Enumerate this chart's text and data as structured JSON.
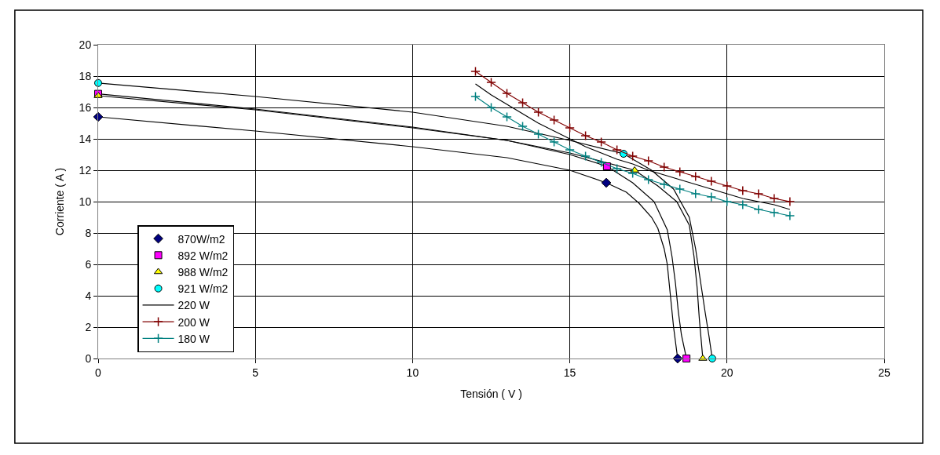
{
  "chart_data": {
    "type": "line",
    "xlabel": "Tensión ( V )",
    "ylabel": "Corriente ( A )",
    "xlim": [
      0,
      25
    ],
    "xticks": [
      0,
      5,
      10,
      15,
      20,
      25
    ],
    "ylim": [
      0,
      20
    ],
    "yticks": [
      0,
      2,
      4,
      6,
      8,
      10,
      12,
      14,
      16,
      18,
      20
    ],
    "grid": true,
    "legend": "bottom left",
    "series": [
      {
        "color": "#000000",
        "marker": "none",
        "x": [
          0,
          5,
          10,
          13,
          15,
          16.16,
          16.8,
          17.2,
          17.6,
          17.8,
          18.0,
          18.1,
          18.2,
          18.3,
          18.43
        ],
        "values": [
          15.4,
          14.5,
          13.5,
          12.8,
          12.0,
          11.2,
          10.6,
          9.9,
          9.0,
          8.3,
          7.0,
          6.0,
          4.0,
          2.0,
          0
        ]
      },
      {
        "color": "#000000",
        "marker": "none",
        "x": [
          0,
          5,
          10,
          13,
          15,
          16.18,
          17.0,
          17.68,
          18.1,
          18.25,
          18.36,
          18.45,
          18.55,
          18.71
        ],
        "values": [
          16.87,
          15.9,
          14.75,
          13.9,
          13.0,
          12.25,
          11.2,
          10.0,
          8.2,
          6.5,
          4.8,
          3.0,
          1.5,
          0
        ]
      },
      {
        "color": "#000000",
        "marker": "none",
        "x": [
          0,
          5,
          10,
          13,
          15,
          17.06,
          17.8,
          18.4,
          18.8,
          18.95,
          19.05,
          19.12,
          19.23
        ],
        "values": [
          16.75,
          15.85,
          14.7,
          13.9,
          13.1,
          12.0,
          11.0,
          10.0,
          8.5,
          6.5,
          4.5,
          2.5,
          0
        ]
      },
      {
        "color": "#000000",
        "marker": "none",
        "x": [
          0,
          5,
          10,
          13,
          15,
          16.71,
          17.6,
          18.3,
          18.8,
          19.0,
          19.15,
          19.3,
          19.42,
          19.53
        ],
        "values": [
          17.56,
          16.7,
          15.7,
          14.8,
          13.9,
          13.05,
          12.0,
          10.8,
          9.0,
          7.0,
          5.0,
          3.0,
          1.5,
          0
        ]
      },
      {
        "name": "870W/m2",
        "type": "scatter",
        "color": "#000080",
        "marker": "diamond",
        "x": [
          0,
          16.16,
          18.43
        ],
        "values": [
          15.4,
          11.2,
          0
        ]
      },
      {
        "name": "892 W/m2",
        "type": "scatter",
        "color": "#ff00ff",
        "marker": "square",
        "x": [
          0,
          16.18,
          18.71
        ],
        "values": [
          16.87,
          12.25,
          0
        ]
      },
      {
        "name": "988 W/m2",
        "type": "scatter",
        "color": "#ffff00",
        "marker": "triangle",
        "x": [
          0,
          17.06,
          19.23
        ],
        "values": [
          16.75,
          12.0,
          0
        ]
      },
      {
        "name": "921 W/m2",
        "type": "scatter",
        "color": "#00ffff",
        "marker": "circle",
        "x": [
          0,
          16.71,
          19.53
        ],
        "values": [
          17.56,
          13.05,
          0
        ]
      },
      {
        "name": "220 W",
        "color": "#000000",
        "marker": "none",
        "x": [
          12,
          12.5,
          13,
          13.5,
          14,
          14.5,
          15,
          15.5,
          16,
          16.5,
          17,
          17.5,
          18,
          18.5,
          19,
          19.5,
          20,
          20.5,
          21,
          21.5,
          22
        ],
        "values": [
          17.5,
          16.8,
          16.2,
          15.6,
          15.0,
          14.5,
          14.0,
          13.5,
          13.1,
          12.7,
          12.4,
          12.0,
          11.7,
          11.4,
          11.1,
          10.8,
          10.5,
          10.2,
          10.0,
          9.8,
          9.5
        ]
      },
      {
        "name": "200 W",
        "color": "#800000",
        "marker": "cross",
        "x": [
          12,
          12.5,
          13,
          13.5,
          14,
          14.5,
          15,
          15.5,
          16,
          16.5,
          17,
          17.5,
          18,
          18.5,
          19,
          19.5,
          20,
          20.5,
          21,
          21.5,
          22
        ],
        "values": [
          18.3,
          17.6,
          16.9,
          16.3,
          15.7,
          15.2,
          14.7,
          14.2,
          13.8,
          13.3,
          12.9,
          12.6,
          12.2,
          11.9,
          11.6,
          11.3,
          11.0,
          10.7,
          10.5,
          10.2,
          10.0
        ]
      },
      {
        "name": "180 W",
        "color": "#008080",
        "marker": "cross",
        "x": [
          12,
          12.5,
          13,
          13.5,
          14,
          14.5,
          15,
          15.5,
          16,
          16.5,
          17,
          17.5,
          18,
          18.5,
          19,
          19.5,
          20,
          20.5,
          21,
          21.5,
          22
        ],
        "values": [
          16.7,
          16.0,
          15.4,
          14.8,
          14.3,
          13.8,
          13.3,
          12.9,
          12.5,
          12.1,
          11.8,
          11.4,
          11.1,
          10.8,
          10.5,
          10.3,
          10.0,
          9.8,
          9.5,
          9.3,
          9.1
        ]
      }
    ]
  }
}
